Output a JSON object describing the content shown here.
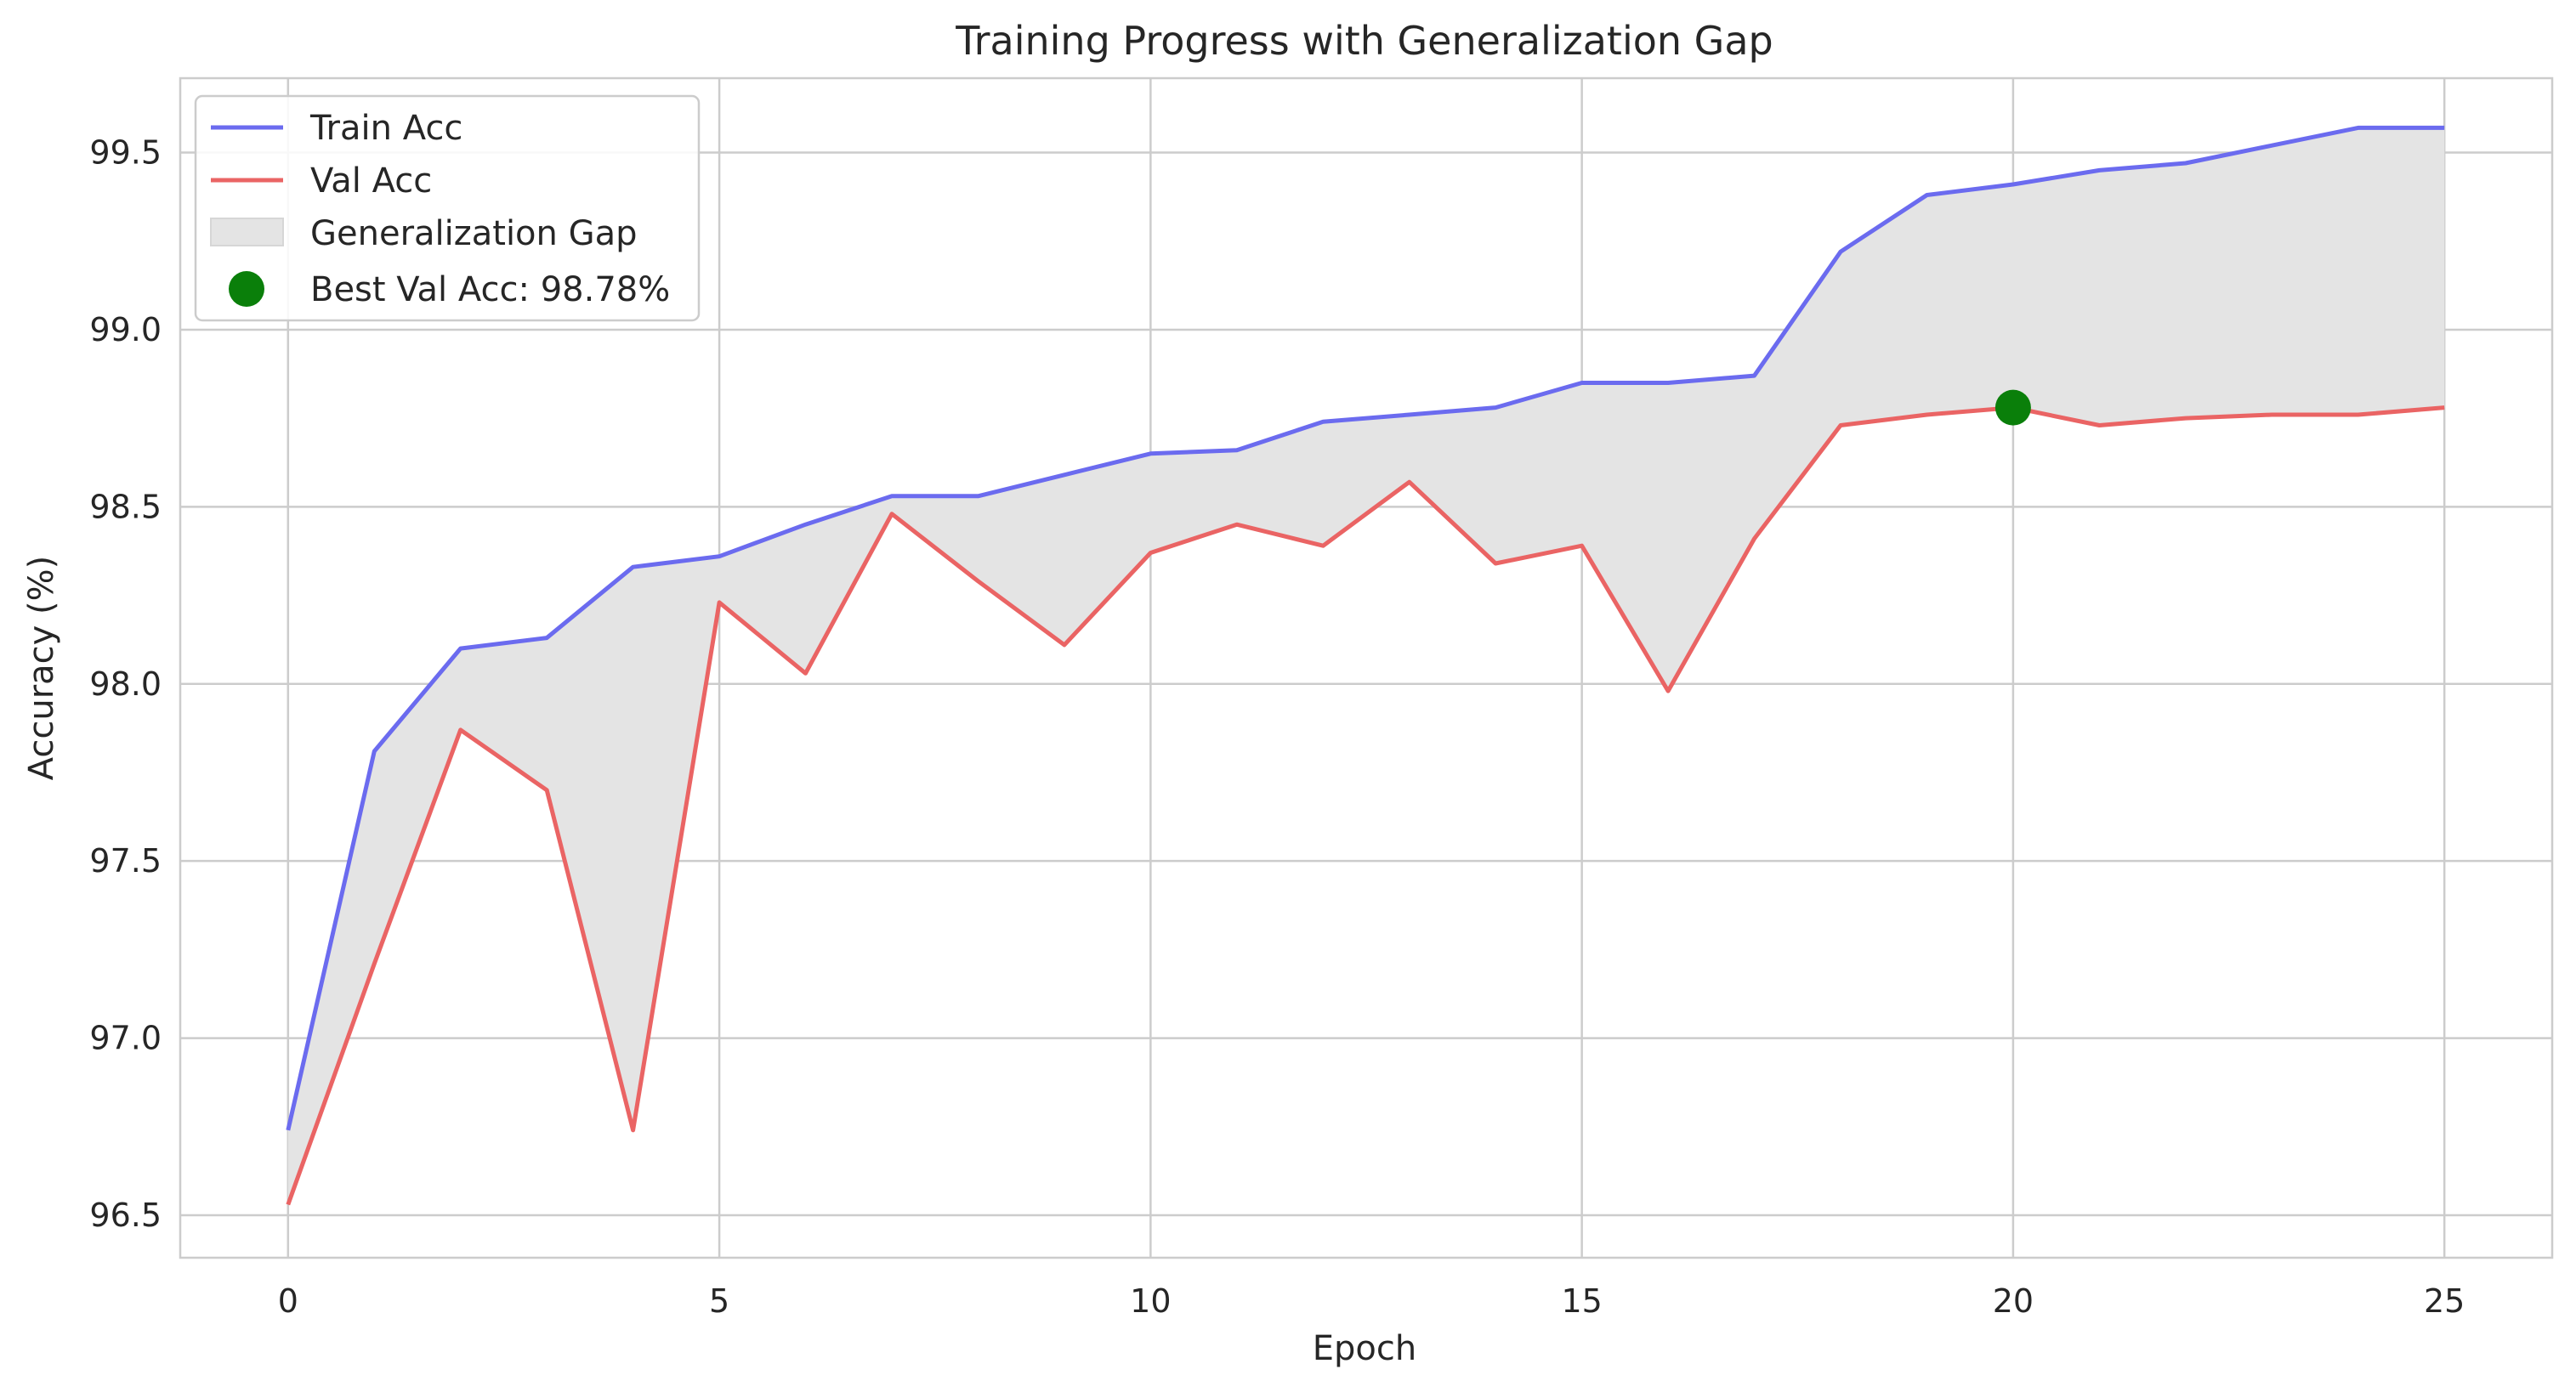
{
  "chart_data": {
    "type": "line",
    "title": "Training Progress with Generalization Gap",
    "xlabel": "Epoch",
    "ylabel": "Accuracy (%)",
    "xlim": [
      -1.25,
      26.25
    ],
    "ylim": [
      96.38,
      99.71
    ],
    "grid": true,
    "legend_position": "top-left",
    "x": [
      0,
      1,
      2,
      3,
      4,
      5,
      6,
      7,
      8,
      9,
      10,
      11,
      12,
      13,
      14,
      15,
      16,
      17,
      18,
      19,
      20,
      21,
      22,
      23,
      24,
      25
    ],
    "x_ticks": [
      "0",
      "5",
      "10",
      "15",
      "20",
      "25"
    ],
    "y_ticks": [
      "96.5",
      "97.0",
      "97.5",
      "98.0",
      "98.5",
      "99.0",
      "99.5"
    ],
    "series": [
      {
        "name": "Train Acc",
        "color": "#6b6bef",
        "values": [
          96.74,
          97.81,
          98.1,
          98.13,
          98.33,
          98.36,
          98.45,
          98.53,
          98.53,
          98.59,
          98.65,
          98.66,
          98.74,
          98.76,
          98.78,
          98.85,
          98.85,
          98.87,
          99.22,
          99.38,
          99.41,
          99.45,
          99.47,
          99.52,
          99.57,
          99.57
        ]
      },
      {
        "name": "Val Acc",
        "color": "#ea6464",
        "values": [
          96.53,
          97.21,
          97.87,
          97.7,
          96.74,
          98.23,
          98.03,
          98.48,
          98.29,
          98.11,
          98.37,
          98.45,
          98.39,
          98.57,
          98.34,
          98.39,
          97.98,
          98.41,
          98.73,
          98.76,
          98.78,
          98.73,
          98.75,
          98.76,
          98.76,
          98.78
        ]
      }
    ],
    "fill": {
      "name": "Generalization Gap",
      "color": "#e4e4e4"
    },
    "best_point": {
      "label": "Best Val Acc: 98.78%",
      "x": 20,
      "y": 98.78,
      "color": "#0a7f0a"
    }
  }
}
